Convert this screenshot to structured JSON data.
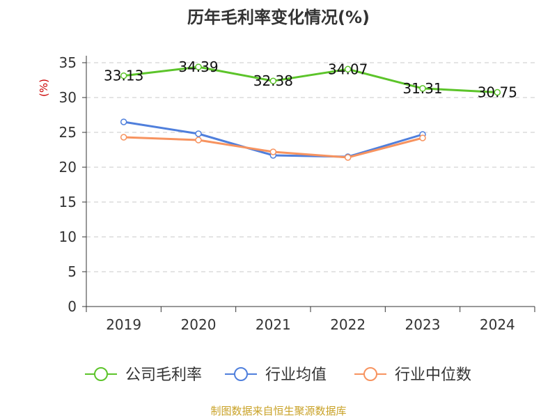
{
  "chart_data": {
    "type": "line",
    "title": "历年毛利率变化情况(%)",
    "ylabel": "(%)",
    "xlabel": "",
    "categories": [
      "2019",
      "2020",
      "2021",
      "2022",
      "2023",
      "2024"
    ],
    "yticks": [
      "0",
      "5",
      "10",
      "15",
      "20",
      "25",
      "30",
      "35"
    ],
    "ylim": [
      0,
      35
    ],
    "grid": true,
    "legend_position": "bottom",
    "series": [
      {
        "name": "公司毛利率",
        "color": "#5cc42a",
        "values": [
          33.13,
          34.39,
          32.38,
          34.07,
          31.31,
          30.75
        ],
        "labels": [
          "33.13",
          "34.39",
          "32.38",
          "34.07",
          "31.31",
          "30.75"
        ]
      },
      {
        "name": "行业均值",
        "color": "#4f7fdc",
        "values": [
          26.5,
          24.8,
          21.7,
          21.5,
          24.7,
          null
        ]
      },
      {
        "name": "行业中位数",
        "color": "#f7935f",
        "values": [
          24.3,
          23.9,
          22.2,
          21.4,
          24.2,
          null
        ]
      }
    ]
  },
  "source": "制图数据来自恒生聚源数据库"
}
